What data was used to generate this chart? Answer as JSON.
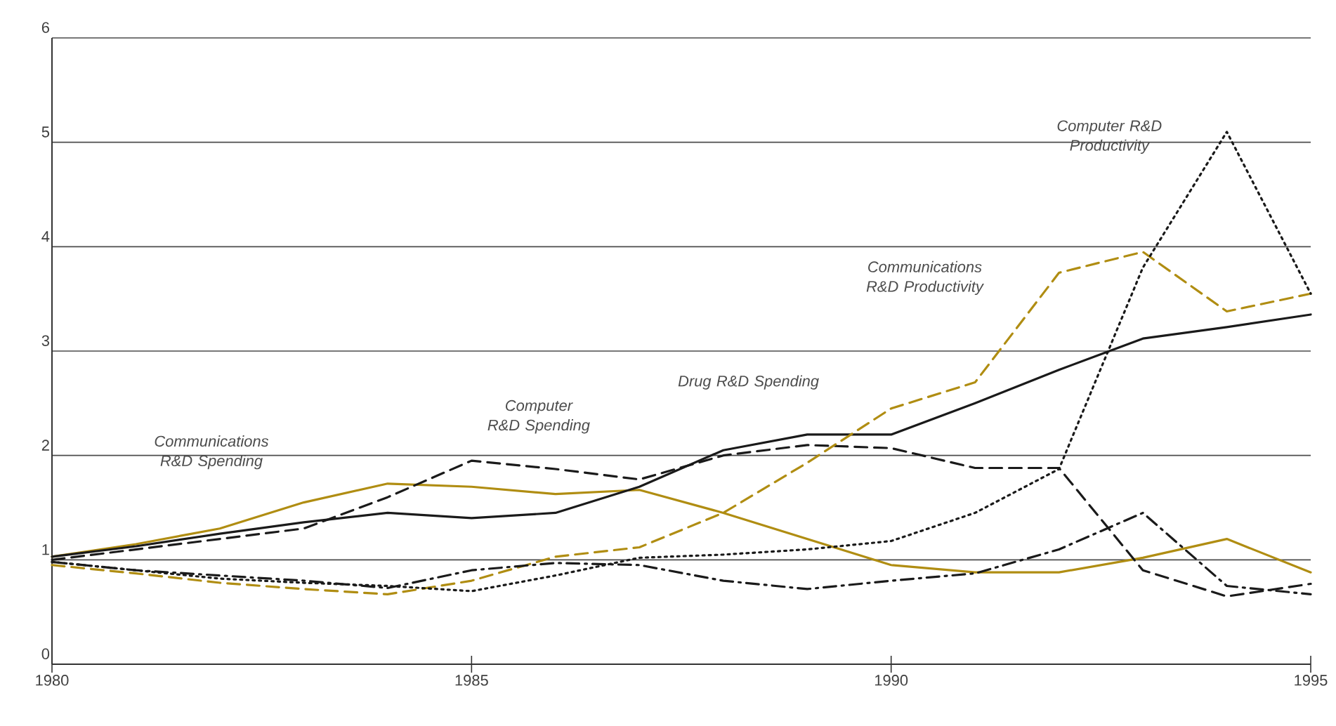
{
  "chart_data": {
    "type": "line",
    "x": [
      1980,
      1981,
      1982,
      1983,
      1984,
      1985,
      1986,
      1987,
      1988,
      1989,
      1990,
      1991,
      1992,
      1993,
      1994,
      1995
    ],
    "xlim": [
      1980,
      1995
    ],
    "xticks": [
      1980,
      1985,
      1990,
      1995
    ],
    "ylim": [
      0,
      6
    ],
    "yticks": [
      0,
      1,
      2,
      3,
      4,
      5,
      6
    ],
    "grid": "y",
    "legend": false,
    "marker": "none",
    "series": [
      {
        "name": "Communications R&D Spending",
        "color": "#b08d12",
        "line_style": "solid",
        "values": [
          1.03,
          1.15,
          1.3,
          1.55,
          1.73,
          1.7,
          1.63,
          1.67,
          1.45,
          1.2,
          0.95,
          0.88,
          0.88,
          1.02,
          1.2,
          0.88
        ]
      },
      {
        "name": "Computer R&D Spending",
        "color": "#1a1a1a",
        "line_style": "dashed",
        "values": [
          1.0,
          1.1,
          1.2,
          1.3,
          1.6,
          1.95,
          1.87,
          1.77,
          2.0,
          2.1,
          2.07,
          1.88,
          1.88,
          0.9,
          0.65,
          0.77
        ]
      },
      {
        "name": "Drug R&D Spending",
        "color": "#1a1a1a",
        "line_style": "solid",
        "values": [
          1.03,
          1.13,
          1.25,
          1.36,
          1.45,
          1.4,
          1.45,
          1.7,
          2.05,
          2.2,
          2.2,
          2.5,
          2.82,
          3.12,
          3.23,
          3.35
        ]
      },
      {
        "name": "Communications R&D Productivity",
        "color": "#b08d12",
        "line_style": "dashed",
        "values": [
          0.95,
          0.87,
          0.78,
          0.72,
          0.67,
          0.8,
          1.03,
          1.12,
          1.45,
          1.93,
          2.45,
          2.7,
          3.75,
          3.95,
          3.38,
          3.55
        ]
      },
      {
        "name": "Computer R&D Productivity",
        "color": "#1a1a1a",
        "line_style": "dotted",
        "values": [
          0.98,
          0.9,
          0.82,
          0.78,
          0.75,
          0.7,
          0.85,
          1.02,
          1.05,
          1.1,
          1.18,
          1.45,
          1.87,
          3.8,
          5.1,
          3.55
        ]
      },
      {
        "color": "#1a1a1a",
        "line_style": "dashdotted",
        "values": [
          0.98,
          0.9,
          0.85,
          0.8,
          0.73,
          0.9,
          0.97,
          0.95,
          0.8,
          0.72,
          0.8,
          0.87,
          1.1,
          1.45,
          0.75,
          0.67
        ]
      }
    ]
  }
}
